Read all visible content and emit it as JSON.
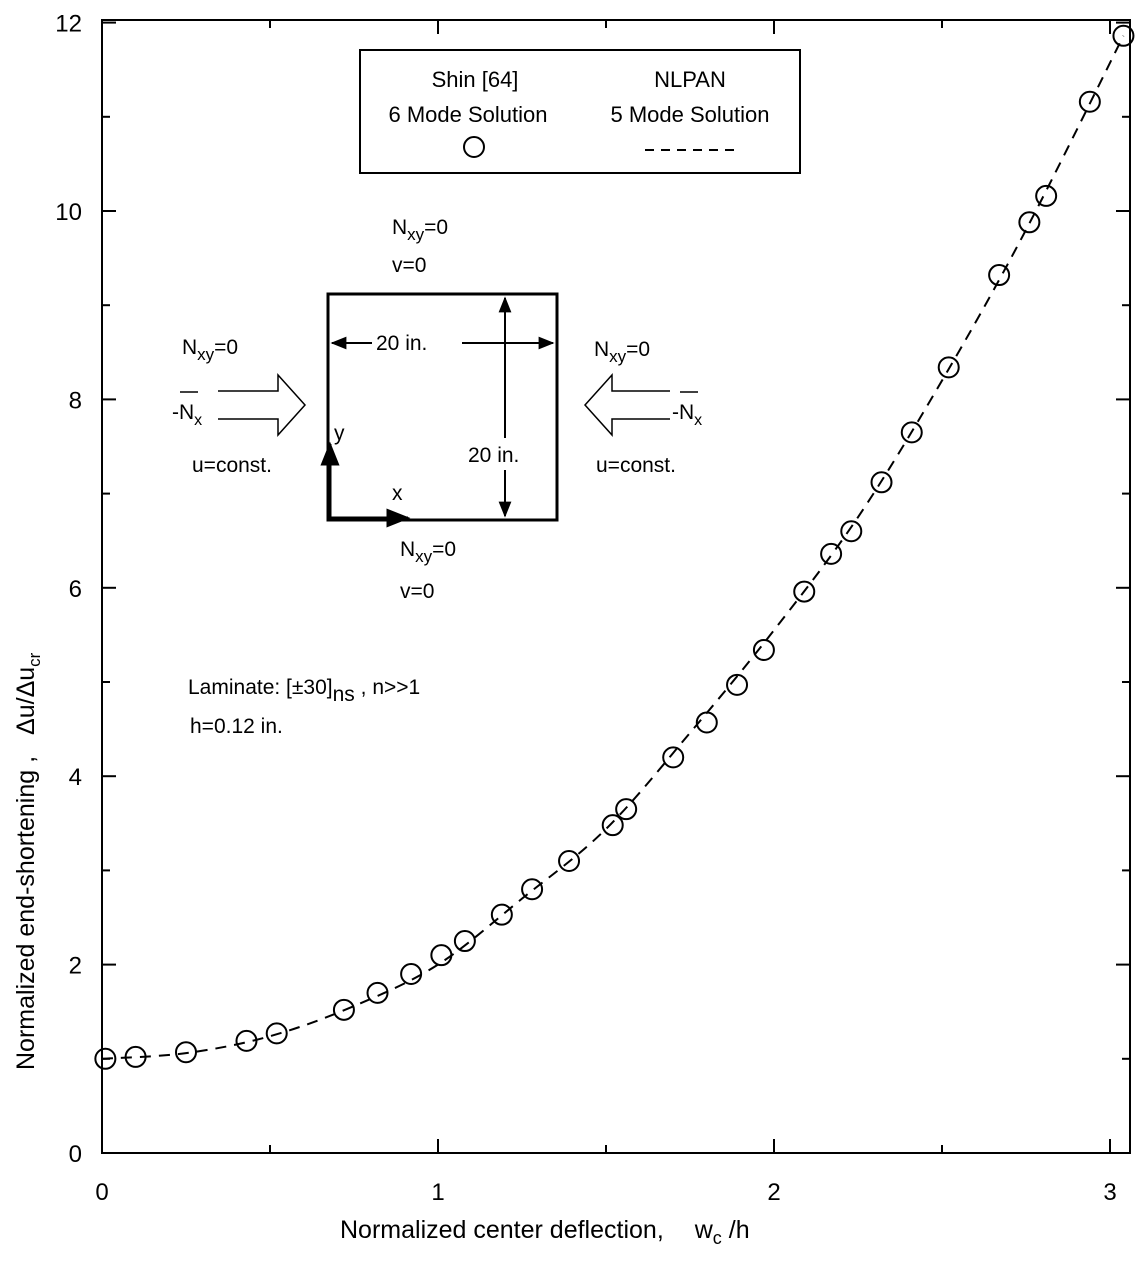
{
  "chart_data": {
    "type": "scatter",
    "title": "",
    "xlabel": "Normalized center deflection,",
    "xlabel_symbol": "w",
    "xlabel_symbol_sub": "c",
    "xlabel_symbol_tail": " /h",
    "ylabel": "Normalized end-shortening ,",
    "ylabel_symbol": "Δu/Δu",
    "ylabel_symbol_sub": "cr",
    "xlim": [
      0,
      3.05
    ],
    "ylim": [
      0,
      12
    ],
    "x_ticks": [
      "0",
      "1",
      "2",
      "3"
    ],
    "y_ticks": [
      "0",
      "2",
      "4",
      "6",
      "8",
      "10",
      "12"
    ],
    "grid": false,
    "legend_position": "top-center",
    "legend": [
      {
        "line1": "Shin [64]",
        "line2": "6 Mode Solution",
        "marker": "circle"
      },
      {
        "line1": "NLPAN",
        "line2": "5 Mode Solution",
        "marker": "dashed-line"
      }
    ],
    "series": [
      {
        "name": "Shin [64] 6 Mode Solution",
        "style": "circle",
        "points": [
          [
            0.01,
            1.0
          ],
          [
            0.1,
            1.02
          ],
          [
            0.25,
            1.07
          ],
          [
            0.43,
            1.19
          ],
          [
            0.52,
            1.27
          ],
          [
            0.72,
            1.52
          ],
          [
            0.82,
            1.7
          ],
          [
            0.92,
            1.9
          ],
          [
            1.01,
            2.1
          ],
          [
            1.08,
            2.25
          ],
          [
            1.19,
            2.53
          ],
          [
            1.28,
            2.8
          ],
          [
            1.39,
            3.1
          ],
          [
            1.52,
            3.48
          ],
          [
            1.56,
            3.65
          ],
          [
            1.7,
            4.2
          ],
          [
            1.8,
            4.57
          ],
          [
            1.89,
            4.97
          ],
          [
            1.97,
            5.34
          ],
          [
            2.09,
            5.96
          ],
          [
            2.17,
            6.36
          ],
          [
            2.23,
            6.6
          ],
          [
            2.32,
            7.12
          ],
          [
            2.41,
            7.65
          ],
          [
            2.52,
            8.34
          ],
          [
            2.67,
            9.32
          ],
          [
            2.76,
            9.88
          ],
          [
            2.81,
            10.16
          ],
          [
            2.94,
            11.16
          ],
          [
            3.04,
            11.86
          ]
        ]
      },
      {
        "name": "NLPAN 5 Mode Solution",
        "style": "dashed",
        "points": [
          [
            0.0,
            1.0
          ],
          [
            0.25,
            1.06
          ],
          [
            0.5,
            1.24
          ],
          [
            0.75,
            1.56
          ],
          [
            1.0,
            2.0
          ],
          [
            1.25,
            2.7
          ],
          [
            1.5,
            3.44
          ],
          [
            1.75,
            4.46
          ],
          [
            2.0,
            5.55
          ],
          [
            2.25,
            6.75
          ],
          [
            2.5,
            8.2
          ],
          [
            2.75,
            9.8
          ],
          [
            3.04,
            11.86
          ]
        ]
      }
    ],
    "annotations": {
      "edge_condition": "N",
      "edge_condition_sub": "xy",
      "edge_condition_tail": "=0",
      "v_zero": "v=0",
      "u_const": "u=const.",
      "load_minus": "-",
      "load_symbol": "N",
      "load_sub": "x",
      "x_axis_label": "x",
      "y_axis_label": "y",
      "width": "20 in.",
      "height": "20 in.",
      "laminate_prefix": "Laminate: [",
      "laminate_angle": "±30]",
      "laminate_sub": "ns",
      "laminate_tail": " ,  n>>1",
      "thickness": "h=0.12 in."
    }
  }
}
